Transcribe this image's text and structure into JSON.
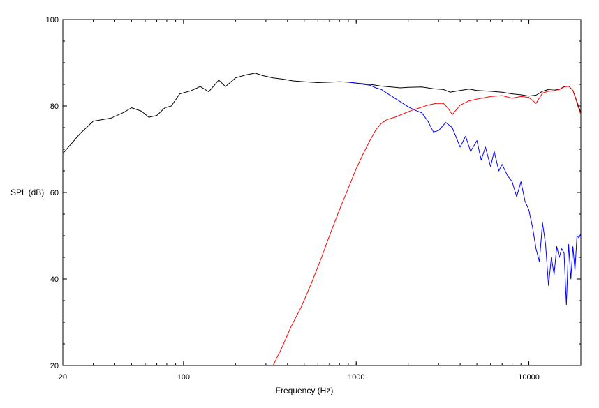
{
  "chart_data": {
    "type": "line",
    "title": "",
    "xlabel": "Frequency (Hz)",
    "ylabel": "SPL (dB)",
    "xscale": "log",
    "xlim": [
      20,
      20000
    ],
    "ylim": [
      20,
      100
    ],
    "grid": false,
    "legend": "none",
    "xticks": [
      {
        "value": 20,
        "label": "20"
      },
      {
        "value": 100,
        "label": "100"
      },
      {
        "value": 1000,
        "label": "1000"
      },
      {
        "value": 10000,
        "label": "10000"
      }
    ],
    "yticks": [
      {
        "value": 20,
        "label": "20"
      },
      {
        "value": 40,
        "label": "40"
      },
      {
        "value": 60,
        "label": "60"
      },
      {
        "value": 80,
        "label": "80"
      },
      {
        "value": 100,
        "label": "100"
      }
    ],
    "series": [
      {
        "color": "#000000",
        "x": [
          20,
          25,
          30,
          38,
          45,
          50,
          57,
          63,
          70,
          78,
          85,
          95,
          110,
          125,
          140,
          160,
          175,
          200,
          230,
          260,
          290,
          330,
          380,
          430,
          500,
          600,
          700,
          800,
          900,
          1000,
          1200,
          1400,
          1600,
          1800,
          2000,
          2400,
          2800,
          3200,
          3500,
          4000,
          4500,
          5000,
          6000,
          7000,
          8000,
          9000,
          10000,
          11000,
          12000,
          13000,
          14000,
          15000,
          16000,
          17000,
          18000,
          20000
        ],
        "y": [
          69,
          73.5,
          76.5,
          77.2,
          78.5,
          79.6,
          78.8,
          77.4,
          77.8,
          79.6,
          80,
          82.8,
          83.5,
          84.5,
          83.3,
          86,
          84.5,
          86.5,
          87.2,
          87.6,
          87,
          86.5,
          86.2,
          85.8,
          85.6,
          85.4,
          85.5,
          85.6,
          85.5,
          85.3,
          85,
          84.6,
          84.4,
          84.2,
          84.3,
          84.4,
          84,
          83.8,
          83.2,
          83.6,
          83.9,
          83.6,
          83.4,
          83.2,
          82.8,
          82.6,
          82.3,
          82.5,
          83.4,
          83.8,
          83.9,
          83.8,
          84.5,
          84.6,
          83.6,
          78.5
        ]
      },
      {
        "color": "#0000ff",
        "x": [
          900,
          1000,
          1100,
          1200,
          1300,
          1400,
          1500,
          1600,
          1800,
          2000,
          2200,
          2400,
          2600,
          2800,
          3000,
          3300,
          3600,
          4000,
          4300,
          4600,
          5000,
          5300,
          5600,
          6000,
          6300,
          6700,
          7000,
          7500,
          8000,
          8500,
          9000,
          9500,
          10000,
          10500,
          11000,
          11500,
          12000,
          12500,
          13000,
          13500,
          14000,
          14500,
          15000,
          15500,
          16000,
          16500,
          17000,
          17500,
          18000,
          18500,
          19000,
          19500,
          20000
        ],
        "y": [
          85.5,
          85.3,
          85,
          84.8,
          84.2,
          83.8,
          83,
          82.3,
          81,
          79.8,
          79,
          78.4,
          76.5,
          74,
          74.3,
          76.2,
          75,
          70.5,
          73,
          69.5,
          72,
          67.5,
          70.5,
          66,
          69.5,
          65,
          66.5,
          64,
          62.5,
          59,
          62.5,
          58,
          56,
          52,
          47,
          44,
          53,
          48,
          38.5,
          45,
          41,
          47.5,
          45,
          47,
          46,
          34,
          48,
          40,
          47.5,
          42,
          50,
          49.5,
          50.5
        ]
      },
      {
        "color": "#ff0000",
        "x": [
          330,
          370,
          420,
          480,
          550,
          630,
          700,
          800,
          900,
          1000,
          1100,
          1200,
          1300,
          1400,
          1500,
          1700,
          1900,
          2100,
          2300,
          2600,
          2900,
          3200,
          3400,
          3600,
          4000,
          4500,
          5000,
          5500,
          6000,
          7000,
          8000,
          9000,
          10000,
          11000,
          12000,
          13000,
          14000,
          15000,
          16000,
          17000,
          18000,
          20000
        ],
        "y": [
          20,
          24,
          29,
          33.5,
          39,
          45,
          50,
          56,
          61,
          65.5,
          69,
          72,
          74.5,
          76,
          76.8,
          77.5,
          78.3,
          79,
          79.5,
          80.2,
          80.6,
          80.6,
          79.5,
          78,
          80.2,
          81.2,
          81.6,
          81.9,
          82.2,
          82.4,
          81.8,
          82.2,
          82,
          80.6,
          83,
          83.4,
          83.6,
          83.8,
          84.4,
          84.6,
          83.6,
          78
        ]
      }
    ]
  }
}
